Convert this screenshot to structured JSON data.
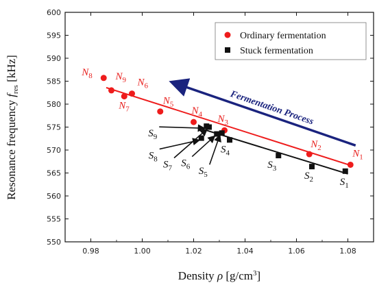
{
  "chart_data": {
    "type": "scatter",
    "xlabel": "Density ρ [g/cm³]",
    "ylabel": "Resonance frequency f_res [kHz]",
    "xlim": [
      0.97,
      1.09
    ],
    "ylim": [
      550,
      600
    ],
    "xticks": [
      "0.98",
      "1.00",
      "1.02",
      "1.04",
      "1.06",
      "1.08"
    ],
    "yticks": [
      "550",
      "555",
      "560",
      "565",
      "570",
      "575",
      "580",
      "585",
      "590",
      "595",
      "600"
    ],
    "grid": false,
    "legend_position": "top-right",
    "series": [
      {
        "name": "Ordinary fermentation",
        "color": "#ee1c1c",
        "marker": "circle",
        "points": [
          {
            "label": "N1",
            "x": 1.081,
            "y": 566.8
          },
          {
            "label": "N2",
            "x": 1.065,
            "y": 569.1
          },
          {
            "label": "N3",
            "x": 1.032,
            "y": 574.3
          },
          {
            "label": "N4",
            "x": 1.02,
            "y": 576.1
          },
          {
            "label": "N5",
            "x": 1.007,
            "y": 578.4
          },
          {
            "label": "N6",
            "x": 0.996,
            "y": 582.3
          },
          {
            "label": "N7",
            "x": 0.993,
            "y": 581.7
          },
          {
            "label": "N9",
            "x": 0.988,
            "y": 583.0
          },
          {
            "label": "N8",
            "x": 0.985,
            "y": 585.7
          }
        ],
        "fit": {
          "x": [
            0.986,
            1.082
          ],
          "y": [
            583.6,
            566.5
          ]
        }
      },
      {
        "name": "Stuck fermentation",
        "color": "#111111",
        "marker": "square",
        "points": [
          {
            "label": "S1",
            "x": 1.079,
            "y": 565.4
          },
          {
            "label": "S2",
            "x": 1.066,
            "y": 566.4
          },
          {
            "label": "S3",
            "x": 1.053,
            "y": 568.8
          },
          {
            "label": "S4",
            "x": 1.034,
            "y": 572.2
          },
          {
            "label": "S5",
            "x": 1.031,
            "y": 573.7
          },
          {
            "label": "S6",
            "x": 1.029,
            "y": 573.5
          },
          {
            "label": "S7",
            "x": 1.026,
            "y": 575.0
          },
          {
            "label": "S8",
            "x": 1.023,
            "y": 572.6
          },
          {
            "label": "S9",
            "x": 1.025,
            "y": 575.2
          }
        ],
        "fit": {
          "x": [
            1.022,
            1.08
          ],
          "y": [
            574.8,
            564.8
          ]
        }
      }
    ],
    "annotations": [
      {
        "text": "Fermentation Process",
        "color": "#1a237e",
        "from": {
          "x": 1.083,
          "y": 571.0
        },
        "to": {
          "x": 1.013,
          "y": 584.5
        }
      }
    ]
  }
}
